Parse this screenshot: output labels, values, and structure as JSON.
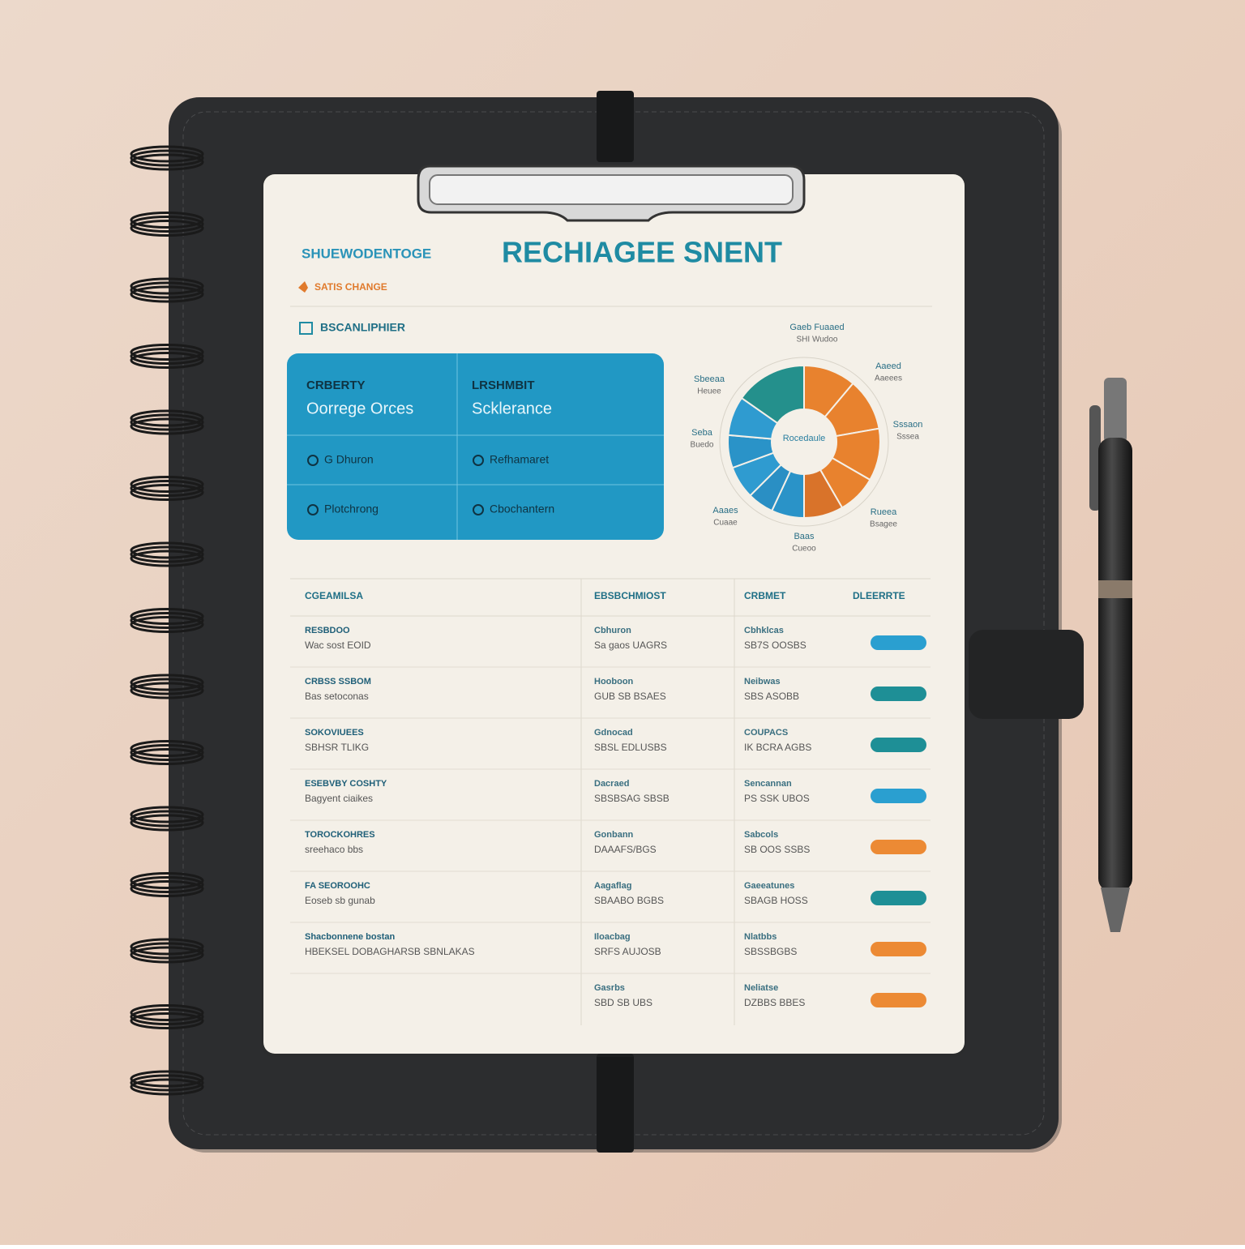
{
  "header": {
    "subtitle": "SHUEWODENTOGE",
    "tag": "SATIS CHANGE",
    "title": "RECHIAGEE SNENT"
  },
  "section": "BSCANLIPHIER",
  "card": {
    "columns": [
      {
        "heading": "CRBERTY",
        "value": "Oorrege Orces"
      },
      {
        "heading": "LRSHMBIT",
        "value": "Scklerance"
      }
    ],
    "rows": [
      [
        "G Dhuron",
        "Refhamaret"
      ],
      [
        "Plotchrong",
        "Cbochantern"
      ]
    ]
  },
  "donut": {
    "center": "Rocedaule",
    "labels": [
      [
        "Gaeb Fuaaed",
        "SHI Wudoo"
      ],
      [
        "Aaeed",
        "Aaeees"
      ],
      [
        "Sbeeaa",
        "Heuee"
      ],
      [
        "Sssaon",
        "Sssea"
      ],
      [
        "Seba",
        "Buedo"
      ],
      [
        "Aaaes",
        "Cuaae"
      ],
      [
        "Baas",
        "Cueoo"
      ],
      [
        "Rueea",
        "Bsagee"
      ]
    ]
  },
  "table": {
    "headers": [
      "CGEAMILSA",
      "EBSBCHMIOST",
      "CRBMET",
      "DLEERRTE"
    ],
    "rows": [
      {
        "cells": [
          [
            "RESBDOO",
            "Wac sost EOID"
          ],
          [
            "Cbhuron",
            "Sa gaos UAGRS"
          ],
          [
            "Cbhklcas",
            "SB7S OOSBS"
          ]
        ],
        "pill_color": "#2a9fd0"
      },
      {
        "cells": [
          [
            "CRBSS SSBOM",
            "Bas setoconas"
          ],
          [
            "Hooboon",
            "GUB SB BSAES"
          ],
          [
            "Neibwas",
            "SBS ASOBB"
          ]
        ],
        "pill_color": "#1e8f96"
      },
      {
        "cells": [
          [
            "SOKOVIUEES",
            "SBHSR TLIKG"
          ],
          [
            "Gdnocad",
            "SBSL EDLUSBS"
          ],
          [
            "COUPACS",
            "IK BCRA AGBS"
          ]
        ],
        "pill_color": "#1e8f96"
      },
      {
        "cells": [
          [
            "ESEBVBY COSHTY",
            "Bagyent ciaikes"
          ],
          [
            "Dacraed",
            "SBSBSAG SBSB"
          ],
          [
            "Sencannan",
            "PS SSK UBOS"
          ]
        ],
        "pill_color": "#2a9fd0"
      },
      {
        "cells": [
          [
            "TOROCKOHRES",
            "sreehaco bbs"
          ],
          [
            "Gonbann",
            "DAAAFS/BGS"
          ],
          [
            "Sabcols",
            "SB OOS SSBS"
          ]
        ],
        "pill_color": "#ec8a34"
      },
      {
        "cells": [
          [
            "FA SEOROOHC",
            "Eoseb sb gunab"
          ],
          [
            "Aagaflag",
            "SBAABO BGBS"
          ],
          [
            "Gaeeatunes",
            "SBAGB HOSS"
          ]
        ],
        "pill_color": "#1e8f96"
      },
      {
        "cells": [
          [
            "Shacbonnene bostan",
            "HBEKSEL DOBAGHARSB SBNLAKAS"
          ],
          [
            "Iloacbag",
            "SRFS AUJOSB"
          ],
          [
            "Nlatbbs",
            "SBSSBGBS"
          ]
        ],
        "pill_color": "#ec8a34"
      },
      {
        "cells": [
          [],
          [
            "Gasrbs",
            "SBD SB UBS"
          ],
          [
            "Neliatse",
            "DZBBS BBES"
          ]
        ],
        "pill_color": "#ec8a34"
      }
    ]
  }
}
